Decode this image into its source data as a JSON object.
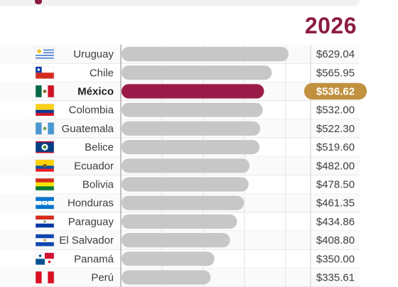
{
  "header": {
    "year": "2026"
  },
  "colors": {
    "bar": "#c7c7c7",
    "bar_track": "#eeeeee",
    "highlight_bar": "#9b1b48",
    "highlight_badge": "#c1913f"
  },
  "chart_data": {
    "type": "bar",
    "orientation": "horizontal",
    "title": "2026",
    "grid": true,
    "highlight": "México",
    "categories": [
      "Uruguay",
      "Chile",
      "México",
      "Colombia",
      "Guatemala",
      "Belice",
      "Ecuador",
      "Bolivia",
      "Honduras",
      "Paraguay",
      "El Salvador",
      "Panamá",
      "Perú"
    ],
    "values": [
      629.04,
      565.95,
      536.62,
      532.0,
      522.3,
      519.6,
      482.0,
      478.5,
      461.35,
      434.86,
      408.8,
      350.0,
      335.61
    ],
    "value_labels": [
      "$629.04",
      "$565.95",
      "$536.62",
      "$532.00",
      "$522.30",
      "$519.60",
      "$482.00",
      "$478.50",
      "$461.35",
      "$434.86",
      "$408.80",
      "$350.00",
      "$335.61"
    ],
    "flags": [
      "uruguay-flag-icon",
      "chile-flag-icon",
      "mexico-flag-icon",
      "colombia-flag-icon",
      "guatemala-flag-icon",
      "belize-flag-icon",
      "ecuador-flag-icon",
      "bolivia-flag-icon",
      "honduras-flag-icon",
      "paraguay-flag-icon",
      "el-salvador-flag-icon",
      "panama-flag-icon",
      "peru-flag-icon"
    ]
  }
}
